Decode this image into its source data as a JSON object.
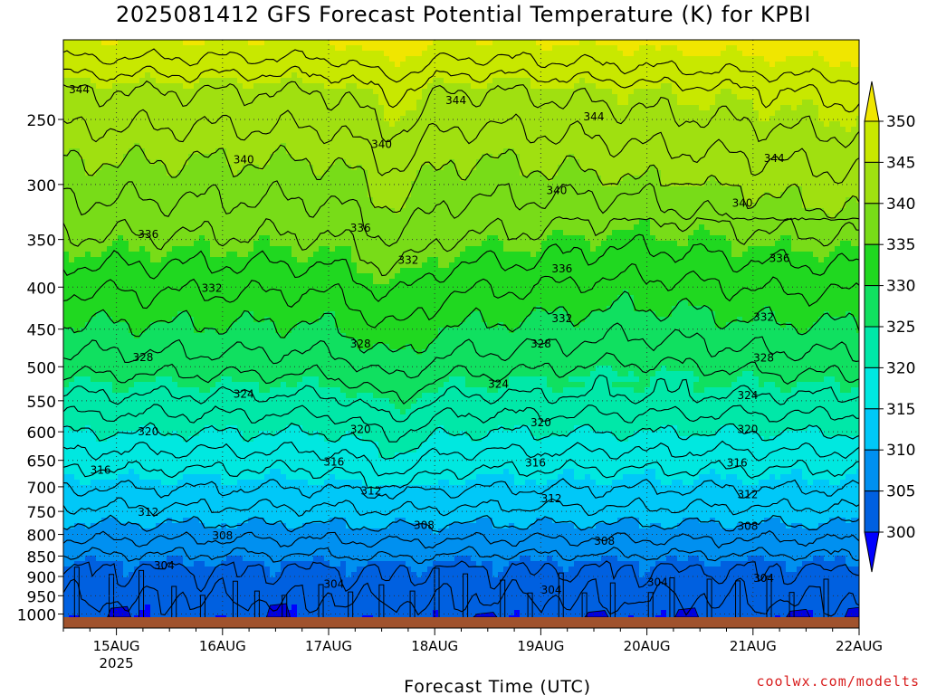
{
  "title": "2025081412 GFS Forecast Potential Temperature (K) for KPBI",
  "credit": "coolwx.com/modelts",
  "chart_data": {
    "type": "heatmap",
    "title": "2025081412 GFS Forecast Potential Temperature (K) for KPBI",
    "xlabel": "Forecast Time (UTC)",
    "ylabel": "",
    "x_ticks": [
      {
        "label": "15AUG",
        "sub": "2025",
        "day": 15
      },
      {
        "label": "16AUG",
        "sub": "",
        "day": 16
      },
      {
        "label": "17AUG",
        "sub": "",
        "day": 17
      },
      {
        "label": "18AUG",
        "sub": "",
        "day": 18
      },
      {
        "label": "19AUG",
        "sub": "",
        "day": 19
      },
      {
        "label": "20AUG",
        "sub": "",
        "day": 20
      },
      {
        "label": "21AUG",
        "sub": "",
        "day": 21
      },
      {
        "label": "22AUG",
        "sub": "",
        "day": 22
      }
    ],
    "xlim_days": [
      14.5,
      22.0
    ],
    "y_ticks": [
      250,
      300,
      350,
      400,
      450,
      500,
      550,
      600,
      650,
      700,
      750,
      800,
      850,
      900,
      950,
      1000
    ],
    "ylim": [
      200,
      1040
    ],
    "y_scale": "log-pressure (inverted)",
    "colorbar": {
      "labels": [
        350,
        345,
        340,
        335,
        330,
        325,
        320,
        315,
        310,
        305,
        300
      ],
      "colors": [
        "#f0e600",
        "#c8e800",
        "#a0e010",
        "#78dc18",
        "#20d820",
        "#10e060",
        "#00e8a8",
        "#00e8e0",
        "#00c8f8",
        "#0090f0",
        "#0060e0",
        "#0000ff"
      ],
      "extend": "both"
    },
    "contour_interval": 2,
    "contour_labels": [
      {
        "value": "344",
        "time_day": 14.65,
        "pressure": 230
      },
      {
        "value": "344",
        "time_day": 18.2,
        "pressure": 237
      },
      {
        "value": "344",
        "time_day": 19.5,
        "pressure": 248
      },
      {
        "value": "344",
        "time_day": 21.2,
        "pressure": 279
      },
      {
        "value": "340",
        "time_day": 16.2,
        "pressure": 280
      },
      {
        "value": "340",
        "time_day": 17.5,
        "pressure": 268
      },
      {
        "value": "340",
        "time_day": 19.15,
        "pressure": 305
      },
      {
        "value": "340",
        "time_day": 20.9,
        "pressure": 316
      },
      {
        "value": "336",
        "time_day": 15.3,
        "pressure": 345
      },
      {
        "value": "336",
        "time_day": 17.3,
        "pressure": 339
      },
      {
        "value": "336",
        "time_day": 19.2,
        "pressure": 380
      },
      {
        "value": "336",
        "time_day": 21.25,
        "pressure": 369
      },
      {
        "value": "332",
        "time_day": 15.9,
        "pressure": 401
      },
      {
        "value": "332",
        "time_day": 17.75,
        "pressure": 371
      },
      {
        "value": "332",
        "time_day": 19.2,
        "pressure": 437
      },
      {
        "value": "332",
        "time_day": 21.1,
        "pressure": 435
      },
      {
        "value": "328",
        "time_day": 15.25,
        "pressure": 487
      },
      {
        "value": "328",
        "time_day": 17.3,
        "pressure": 469
      },
      {
        "value": "328",
        "time_day": 19.0,
        "pressure": 469
      },
      {
        "value": "328",
        "time_day": 21.1,
        "pressure": 488
      },
      {
        "value": "324",
        "time_day": 16.2,
        "pressure": 540
      },
      {
        "value": "324",
        "time_day": 18.6,
        "pressure": 525
      },
      {
        "value": "324",
        "time_day": 20.95,
        "pressure": 542
      },
      {
        "value": "320",
        "time_day": 15.3,
        "pressure": 600
      },
      {
        "value": "320",
        "time_day": 17.3,
        "pressure": 596
      },
      {
        "value": "320",
        "time_day": 19.0,
        "pressure": 585
      },
      {
        "value": "320",
        "time_day": 20.95,
        "pressure": 596
      },
      {
        "value": "316",
        "time_day": 14.85,
        "pressure": 668
      },
      {
        "value": "316",
        "time_day": 17.05,
        "pressure": 653
      },
      {
        "value": "316",
        "time_day": 18.95,
        "pressure": 655
      },
      {
        "value": "316",
        "time_day": 20.85,
        "pressure": 655
      },
      {
        "value": "312",
        "time_day": 15.3,
        "pressure": 752
      },
      {
        "value": "312",
        "time_day": 17.4,
        "pressure": 708
      },
      {
        "value": "312",
        "time_day": 19.1,
        "pressure": 724
      },
      {
        "value": "312",
        "time_day": 20.95,
        "pressure": 715
      },
      {
        "value": "308",
        "time_day": 16.0,
        "pressure": 803
      },
      {
        "value": "308",
        "time_day": 17.9,
        "pressure": 780
      },
      {
        "value": "308",
        "time_day": 19.6,
        "pressure": 815
      },
      {
        "value": "308",
        "time_day": 20.95,
        "pressure": 782
      },
      {
        "value": "304",
        "time_day": 15.45,
        "pressure": 873
      },
      {
        "value": "304",
        "time_day": 17.05,
        "pressure": 920
      },
      {
        "value": "304",
        "time_day": 19.1,
        "pressure": 935
      },
      {
        "value": "304",
        "time_day": 20.1,
        "pressure": 915
      },
      {
        "value": "304",
        "time_day": 21.1,
        "pressure": 905
      }
    ],
    "grid": true,
    "ground_color": "#a0522d"
  }
}
